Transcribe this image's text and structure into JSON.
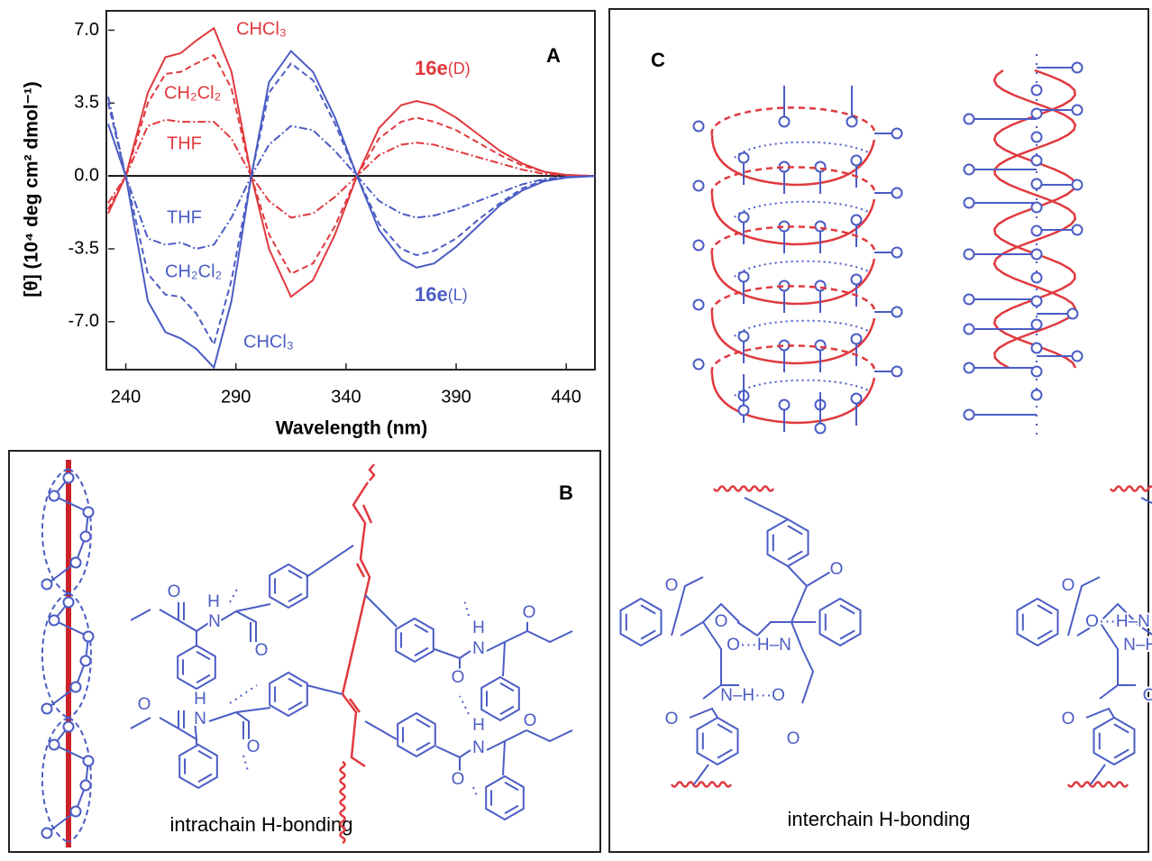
{
  "chart_data": {
    "type": "line",
    "panel_label": "A",
    "x_label": "Wavelength (nm)",
    "y_label": "[θ] (10⁴ deg cm² dmol⁻¹)",
    "x": [
      232,
      240,
      250,
      258,
      265,
      272,
      280,
      288,
      297,
      305,
      315,
      325,
      335,
      345,
      355,
      365,
      372,
      380,
      390,
      400,
      410,
      420,
      430,
      440,
      453
    ],
    "series": [
      {
        "name": "CHCl₃",
        "color": "#e0393e",
        "dash": "solid",
        "values": [
          -1.8,
          0,
          4.0,
          5.7,
          5.9,
          6.5,
          7.1,
          5.0,
          0,
          -3.5,
          -5.8,
          -5.0,
          -2.8,
          0,
          2.3,
          3.4,
          3.6,
          3.4,
          2.8,
          2.0,
          1.2,
          0.6,
          0.2,
          0.05,
          0
        ]
      },
      {
        "name": "CH₂Cl₂",
        "color": "#e0393e",
        "dash": "dashed",
        "values": [
          -1.6,
          0,
          3.5,
          4.9,
          5.0,
          5.4,
          5.8,
          4.2,
          0,
          -2.8,
          -4.7,
          -4.2,
          -2.4,
          0,
          1.8,
          2.6,
          2.8,
          2.6,
          2.2,
          1.6,
          1.0,
          0.5,
          0.2,
          0.05,
          0
        ]
      },
      {
        "name": "THF",
        "color": "#e0393e",
        "dash": "dashdot",
        "values": [
          -1.3,
          0,
          2.4,
          2.7,
          2.6,
          2.6,
          2.6,
          1.8,
          0,
          -1.2,
          -2.0,
          -1.8,
          -1.0,
          0,
          1.0,
          1.5,
          1.6,
          1.5,
          1.2,
          0.9,
          0.6,
          0.3,
          0.1,
          0.03,
          0
        ]
      },
      {
        "name": "THF",
        "color": "#4b5cc4",
        "dash": "dashdot",
        "values": [
          3.8,
          0,
          -3.0,
          -3.3,
          -3.2,
          -3.5,
          -3.3,
          -2.0,
          0,
          1.5,
          2.4,
          2.2,
          1.2,
          0,
          -1.2,
          -1.8,
          -2.0,
          -1.9,
          -1.6,
          -1.2,
          -0.8,
          -0.4,
          -0.15,
          -0.05,
          0
        ]
      },
      {
        "name": "CH₂Cl₂",
        "color": "#4b5cc4",
        "dash": "dashed",
        "values": [
          3.5,
          0,
          -4.7,
          -5.7,
          -5.8,
          -6.6,
          -8.1,
          -5.0,
          0,
          4.0,
          5.4,
          4.6,
          2.5,
          0,
          -2.3,
          -3.5,
          -3.8,
          -3.6,
          -3.0,
          -2.1,
          -1.3,
          -0.6,
          -0.2,
          -0.05,
          0
        ]
      },
      {
        "name": "CHCl₃",
        "color": "#4b5cc4",
        "dash": "solid",
        "values": [
          2.5,
          0,
          -6.0,
          -7.5,
          -7.8,
          -8.3,
          -9.2,
          -6.0,
          0,
          4.5,
          6.0,
          5.0,
          2.8,
          0,
          -2.6,
          -4.0,
          -4.4,
          -4.2,
          -3.4,
          -2.4,
          -1.4,
          -0.7,
          -0.25,
          -0.08,
          0
        ]
      }
    ],
    "annotations": [
      {
        "label": "16e",
        "tag": "(D)",
        "color": "#e0393e"
      },
      {
        "label": "16e",
        "tag": "(L)",
        "color": "#4b5cc4"
      }
    ],
    "xlim": [
      232,
      453
    ],
    "ylim": [
      -9.3,
      7.8
    ],
    "xticks": [
      240,
      290,
      340,
      390,
      440
    ],
    "yticks": [
      {
        "value": 7.0,
        "label": "7.0"
      },
      3.5,
      {
        "value": 0,
        "label": "0.0"
      },
      -3.5,
      {
        "value": -7,
        "label": "-7.0"
      }
    ],
    "zero_line": true
  },
  "panel_b": {
    "label": "B",
    "caption": "intrachain H-bonding",
    "atoms": [
      "O",
      "H",
      "N",
      "O",
      "H",
      "N",
      "O",
      "O",
      "H",
      "N",
      "O",
      "O",
      "H",
      "N",
      "O",
      "O"
    ]
  },
  "panel_c": {
    "label": "C",
    "caption": "interchain H-bonding",
    "atoms": [
      "O",
      "O",
      "O···H–N",
      "N–H···O",
      "O",
      "O",
      "O",
      "O",
      "O···H–N",
      "N–H···O",
      "O",
      "O"
    ]
  }
}
